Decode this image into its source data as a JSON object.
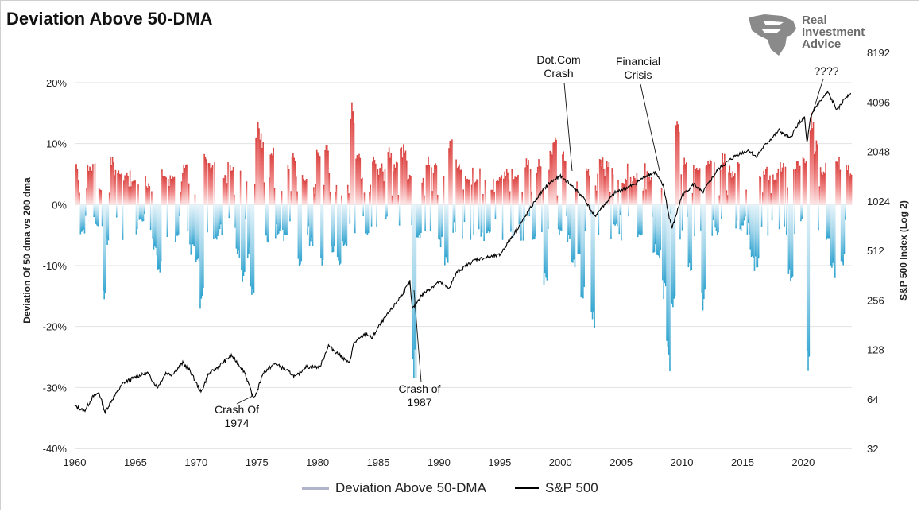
{
  "chart_data": {
    "type": "bar",
    "title": "Deviation Above 50-DMA",
    "ylabel_left": "Deviation Of 50 dma vs 200 dma",
    "ylabel_right": "S&P 500 Index (Log 2)",
    "y_left_ticks": [
      "20%",
      "10%",
      "0%",
      "-10%",
      "-20%",
      "-30%",
      "-40%"
    ],
    "y_right_ticks": [
      "8192",
      "4096",
      "2048",
      "1024",
      "512",
      "256",
      "128",
      "64",
      "32"
    ],
    "x_ticks": [
      "1960",
      "1965",
      "1970",
      "1975",
      "1980",
      "1985",
      "1990",
      "1995",
      "2000",
      "2005",
      "2010",
      "2015",
      "2020"
    ],
    "ylim_left": [
      -40,
      20
    ],
    "ylim_right_log2": [
      32,
      8192
    ],
    "xlim": [
      1960,
      2024
    ],
    "grid": true,
    "legend_position": "bottom",
    "series": [
      {
        "name": "Deviation Above 50-DMA",
        "kind": "bar",
        "unit": "%",
        "points": [
          [
            1960.0,
            7.5
          ],
          [
            1960.6,
            -5.0
          ],
          [
            1961.2,
            7.0
          ],
          [
            1961.8,
            -4.0
          ],
          [
            1962.0,
            3.0
          ],
          [
            1962.4,
            -17.5
          ],
          [
            1962.6,
            -7.0
          ],
          [
            1963.0,
            8.0
          ],
          [
            1963.6,
            6.5
          ],
          [
            1964.2,
            5.5
          ],
          [
            1964.8,
            4.0
          ],
          [
            1965.4,
            -3.0
          ],
          [
            1966.0,
            3.5
          ],
          [
            1966.6,
            -9.0
          ],
          [
            1966.9,
            -11.5
          ],
          [
            1967.3,
            6.0
          ],
          [
            1968.0,
            5.5
          ],
          [
            1968.4,
            -6.5
          ],
          [
            1969.0,
            7.0
          ],
          [
            1969.6,
            -8.5
          ],
          [
            1970.1,
            -10.5
          ],
          [
            1970.4,
            -17.5
          ],
          [
            1970.7,
            8.5
          ],
          [
            1971.2,
            7.0
          ],
          [
            1971.7,
            -6.0
          ],
          [
            1972.3,
            5.0
          ],
          [
            1972.9,
            7.0
          ],
          [
            1973.4,
            -9.5
          ],
          [
            1973.8,
            -13.0
          ],
          [
            1974.3,
            -9.0
          ],
          [
            1974.6,
            -17.0
          ],
          [
            1975.0,
            14.5
          ],
          [
            1975.3,
            12.0
          ],
          [
            1975.8,
            -6.5
          ],
          [
            1976.2,
            10.0
          ],
          [
            1976.8,
            -5.0
          ],
          [
            1977.3,
            -6.0
          ],
          [
            1978.0,
            8.5
          ],
          [
            1978.5,
            -10.5
          ],
          [
            1978.9,
            5.0
          ],
          [
            1979.4,
            -7.0
          ],
          [
            1980.0,
            9.0
          ],
          [
            1980.3,
            -11.5
          ],
          [
            1980.7,
            11.0
          ],
          [
            1981.2,
            -9.0
          ],
          [
            1981.7,
            -10.0
          ],
          [
            1982.2,
            -7.0
          ],
          [
            1982.8,
            17.0
          ],
          [
            1983.3,
            10.0
          ],
          [
            1984.0,
            -6.0
          ],
          [
            1984.6,
            8.0
          ],
          [
            1985.2,
            7.0
          ],
          [
            1985.9,
            10.0
          ],
          [
            1986.4,
            8.0
          ],
          [
            1986.9,
            10.0
          ],
          [
            1987.2,
            9.0
          ],
          [
            1987.5,
            5.0
          ],
          [
            1987.9,
            -30.0
          ],
          [
            1988.3,
            -6.0
          ],
          [
            1989.0,
            8.0
          ],
          [
            1989.6,
            7.0
          ],
          [
            1990.1,
            -7.0
          ],
          [
            1990.6,
            -11.0
          ],
          [
            1990.9,
            12.0
          ],
          [
            1991.5,
            8.0
          ],
          [
            1992.3,
            5.0
          ],
          [
            1993.0,
            4.5
          ],
          [
            1994.0,
            -5.5
          ],
          [
            1994.8,
            5.0
          ],
          [
            1995.5,
            6.0
          ],
          [
            1996.3,
            5.0
          ],
          [
            1997.2,
            8.0
          ],
          [
            1997.8,
            -6.0
          ],
          [
            1998.2,
            8.0
          ],
          [
            1998.7,
            -14.5
          ],
          [
            1999.2,
            10.5
          ],
          [
            1999.5,
            13.0
          ],
          [
            1999.9,
            -5.0
          ],
          [
            2000.2,
            9.0
          ],
          [
            2000.7,
            -6.5
          ],
          [
            2001.0,
            -10.5
          ],
          [
            2001.5,
            -8.5
          ],
          [
            2001.8,
            -16.5
          ],
          [
            2002.2,
            6.0
          ],
          [
            2002.6,
            -21.0
          ],
          [
            2003.3,
            8.0
          ],
          [
            2003.8,
            7.5
          ],
          [
            2004.5,
            -4.0
          ],
          [
            2005.2,
            4.5
          ],
          [
            2006.0,
            5.0
          ],
          [
            2006.5,
            -6.0
          ],
          [
            2007.3,
            4.5
          ],
          [
            2007.7,
            -8.5
          ],
          [
            2008.1,
            -9.0
          ],
          [
            2008.5,
            -16.0
          ],
          [
            2008.8,
            -28.0
          ],
          [
            2009.3,
            -19.0
          ],
          [
            2009.6,
            15.0
          ],
          [
            2010.2,
            8.5
          ],
          [
            2010.6,
            -11.0
          ],
          [
            2011.3,
            7.0
          ],
          [
            2011.7,
            -18.5
          ],
          [
            2012.2,
            7.5
          ],
          [
            2012.8,
            -5.0
          ],
          [
            2013.4,
            8.5
          ],
          [
            2014.2,
            5.5
          ],
          [
            2014.9,
            -4.5
          ],
          [
            2015.7,
            -9.0
          ],
          [
            2016.1,
            -11.0
          ],
          [
            2016.8,
            6.5
          ],
          [
            2017.6,
            5.0
          ],
          [
            2018.2,
            7.0
          ],
          [
            2018.9,
            -13.0
          ],
          [
            2019.5,
            7.5
          ],
          [
            2020.1,
            8.0
          ],
          [
            2020.3,
            -28.5
          ],
          [
            2020.6,
            15.5
          ],
          [
            2021.0,
            11.0
          ],
          [
            2021.6,
            6.5
          ],
          [
            2022.0,
            -7.0
          ],
          [
            2022.4,
            -12.5
          ],
          [
            2022.8,
            8.0
          ],
          [
            2023.2,
            -10.0
          ],
          [
            2023.6,
            6.5
          ],
          [
            2023.9,
            5.5
          ]
        ]
      },
      {
        "name": "S&P 500",
        "kind": "line",
        "axis": "right",
        "points": [
          [
            1960.0,
            58
          ],
          [
            1960.8,
            54
          ],
          [
            1961.5,
            66
          ],
          [
            1962.0,
            70
          ],
          [
            1962.5,
            53
          ],
          [
            1963.0,
            62
          ],
          [
            1964.0,
            80
          ],
          [
            1965.0,
            87
          ],
          [
            1966.0,
            92
          ],
          [
            1966.8,
            75
          ],
          [
            1967.5,
            92
          ],
          [
            1968.0,
            90
          ],
          [
            1968.9,
            106
          ],
          [
            1969.5,
            95
          ],
          [
            1970.4,
            70
          ],
          [
            1971.0,
            90
          ],
          [
            1972.0,
            103
          ],
          [
            1972.9,
            118
          ],
          [
            1973.5,
            104
          ],
          [
            1974.0,
            93
          ],
          [
            1974.7,
            65
          ],
          [
            1975.0,
            70
          ],
          [
            1975.5,
            92
          ],
          [
            1976.5,
            105
          ],
          [
            1977.5,
            95
          ],
          [
            1978.2,
            87
          ],
          [
            1979.0,
            100
          ],
          [
            1980.2,
            100
          ],
          [
            1980.9,
            135
          ],
          [
            1982.0,
            115
          ],
          [
            1982.6,
            105
          ],
          [
            1983.0,
            140
          ],
          [
            1984.0,
            160
          ],
          [
            1984.5,
            150
          ],
          [
            1985.0,
            175
          ],
          [
            1986.0,
            220
          ],
          [
            1987.0,
            280
          ],
          [
            1987.6,
            330
          ],
          [
            1987.8,
            225
          ],
          [
            1988.5,
            270
          ],
          [
            1989.0,
            290
          ],
          [
            1990.0,
            330
          ],
          [
            1990.8,
            300
          ],
          [
            1991.5,
            380
          ],
          [
            1993.0,
            450
          ],
          [
            1994.0,
            465
          ],
          [
            1995.0,
            480
          ],
          [
            1996.0,
            620
          ],
          [
            1997.0,
            800
          ],
          [
            1998.0,
            1050
          ],
          [
            1999.0,
            1300
          ],
          [
            2000.0,
            1450
          ],
          [
            2000.8,
            1300
          ],
          [
            2001.5,
            1150
          ],
          [
            2002.0,
            1050
          ],
          [
            2002.8,
            820
          ],
          [
            2003.5,
            950
          ],
          [
            2004.5,
            1150
          ],
          [
            2006.0,
            1280
          ],
          [
            2007.0,
            1450
          ],
          [
            2007.8,
            1530
          ],
          [
            2008.5,
            1250
          ],
          [
            2008.9,
            850
          ],
          [
            2009.2,
            700
          ],
          [
            2010.0,
            1100
          ],
          [
            2011.0,
            1300
          ],
          [
            2011.7,
            1150
          ],
          [
            2013.0,
            1600
          ],
          [
            2014.5,
            1950
          ],
          [
            2015.5,
            2080
          ],
          [
            2016.1,
            1900
          ],
          [
            2017.0,
            2300
          ],
          [
            2018.0,
            2750
          ],
          [
            2018.9,
            2450
          ],
          [
            2019.5,
            2950
          ],
          [
            2020.1,
            3300
          ],
          [
            2020.3,
            2300
          ],
          [
            2020.6,
            3250
          ],
          [
            2021.0,
            3800
          ],
          [
            2022.0,
            4700
          ],
          [
            2022.8,
            3650
          ],
          [
            2023.5,
            4400
          ],
          [
            2023.9,
            4650
          ]
        ]
      }
    ],
    "annotations": [
      {
        "text": [
          "Crash Of",
          "1974"
        ],
        "x": 1974.6,
        "y": 65
      },
      {
        "text": [
          "Crash of",
          "1987"
        ],
        "x": 1987.8,
        "y": 225
      },
      {
        "text": [
          "Dot.Com",
          "Crash"
        ],
        "x": 2000.6,
        "y": 1450
      },
      {
        "text": [
          "Financial",
          "Crisis"
        ],
        "x": 2007.9,
        "y": 1500
      },
      {
        "text": [
          "????"
        ],
        "x": 2021.8,
        "y": 4600
      }
    ]
  },
  "logo": {
    "line1": "Real",
    "line2": "Investment",
    "line3": "Advice"
  },
  "legend": {
    "item1": "Deviation Above 50-DMA",
    "item2": "S&P 500"
  }
}
